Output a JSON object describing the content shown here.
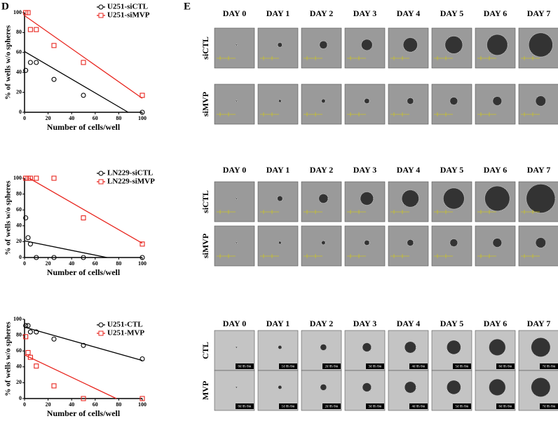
{
  "panel_labels": [
    "D",
    "E"
  ],
  "chart_data": [
    {
      "type": "scatter",
      "xlabel": "Number of cells/well",
      "ylabel": "% of wells w/o spheres",
      "xlim": [
        0,
        100
      ],
      "ylim": [
        0,
        100
      ],
      "xticks": [
        0,
        20,
        40,
        60,
        80,
        100
      ],
      "yticks": [
        0,
        20,
        40,
        60,
        80,
        100
      ],
      "series": [
        {
          "name": "U251-siCTL",
          "color": "#000000",
          "marker": "circle",
          "x": [
            1,
            5,
            10,
            25,
            50,
            100
          ],
          "values": [
            42,
            50,
            50,
            33,
            17,
            0
          ],
          "fit_x": [
            0,
            88
          ],
          "fit_y": [
            61,
            0
          ]
        },
        {
          "name": "U251-siMVP",
          "color": "#e8261f",
          "marker": "square",
          "x": [
            1,
            3,
            5,
            10,
            25,
            50,
            100
          ],
          "values": [
            100,
            100,
            83,
            83,
            67,
            50,
            17
          ],
          "fit_x": [
            0,
            100
          ],
          "fit_y": [
            97,
            14
          ]
        }
      ]
    },
    {
      "type": "scatter",
      "xlabel": "Number of cells/well",
      "ylabel": "% of wells w/o spheres",
      "xlim": [
        0,
        100
      ],
      "ylim": [
        0,
        100
      ],
      "xticks": [
        0,
        20,
        40,
        60,
        80,
        100
      ],
      "yticks": [
        0,
        20,
        40,
        60,
        80,
        100
      ],
      "series": [
        {
          "name": "LN229-siCTL",
          "color": "#000000",
          "marker": "circle",
          "x": [
            1,
            3,
            5,
            10,
            25,
            50,
            100
          ],
          "values": [
            50,
            25,
            17,
            0,
            0,
            0,
            0
          ],
          "fit_x": [
            0,
            70
          ],
          "fit_y": [
            21,
            0
          ]
        },
        {
          "name": "LN229-siMVP",
          "color": "#e8261f",
          "marker": "square",
          "x": [
            1,
            3,
            5,
            10,
            25,
            50,
            100
          ],
          "values": [
            100,
            100,
            100,
            100,
            100,
            50,
            17
          ],
          "fit_x": [
            4,
            100
          ],
          "fit_y": [
            100,
            18
          ]
        }
      ]
    },
    {
      "type": "scatter",
      "xlabel": "Number of cells/well",
      "ylabel": "% of wells w/o spheres",
      "xlim": [
        0,
        100
      ],
      "ylim": [
        0,
        100
      ],
      "xticks": [
        0,
        20,
        40,
        60,
        80,
        100
      ],
      "yticks": [
        0,
        20,
        40,
        60,
        80,
        100
      ],
      "series": [
        {
          "name": "U251-CTL",
          "color": "#000000",
          "marker": "circle",
          "x": [
            1,
            3,
            5,
            10,
            25,
            50,
            100
          ],
          "values": [
            92,
            92,
            84,
            84,
            75,
            67,
            50
          ],
          "fit_x": [
            0,
            100
          ],
          "fit_y": [
            90,
            48
          ]
        },
        {
          "name": "U251-MVP",
          "color": "#e8261f",
          "marker": "square",
          "x": [
            1,
            3,
            5,
            10,
            25,
            50,
            100
          ],
          "values": [
            78,
            58,
            52,
            41,
            16,
            0,
            0
          ],
          "fit_x": [
            0,
            78
          ],
          "fit_y": [
            55,
            0
          ]
        }
      ]
    }
  ],
  "image_grids": [
    {
      "columns": [
        "DAY 0",
        "DAY 1",
        "DAY 2",
        "DAY 3",
        "DAY 4",
        "DAY 5",
        "DAY 6",
        "DAY 7"
      ],
      "rows": [
        "siCTL",
        "siMVP"
      ]
    },
    {
      "columns": [
        "DAY 0",
        "DAY 1",
        "DAY 2",
        "DAY 3",
        "DAY 4",
        "DAY 5",
        "DAY 6",
        "DAY 7"
      ],
      "rows": [
        "siCTL",
        "siMVP"
      ]
    },
    {
      "columns": [
        "DAY 0",
        "DAY 1",
        "DAY 2",
        "DAY 3",
        "DAY 4",
        "DAY 5",
        "DAY 6",
        "DAY 7"
      ],
      "rows": [
        "CTL",
        "MVP"
      ],
      "timestamps": [
        "0d 0h 0m",
        "1d 0h 0m",
        "2d 0h 0m",
        "3d 0h 0m",
        "4d 0h 0m",
        "5d 0h 0m",
        "6d 0h 0m",
        "7d 0h 0m"
      ]
    }
  ]
}
